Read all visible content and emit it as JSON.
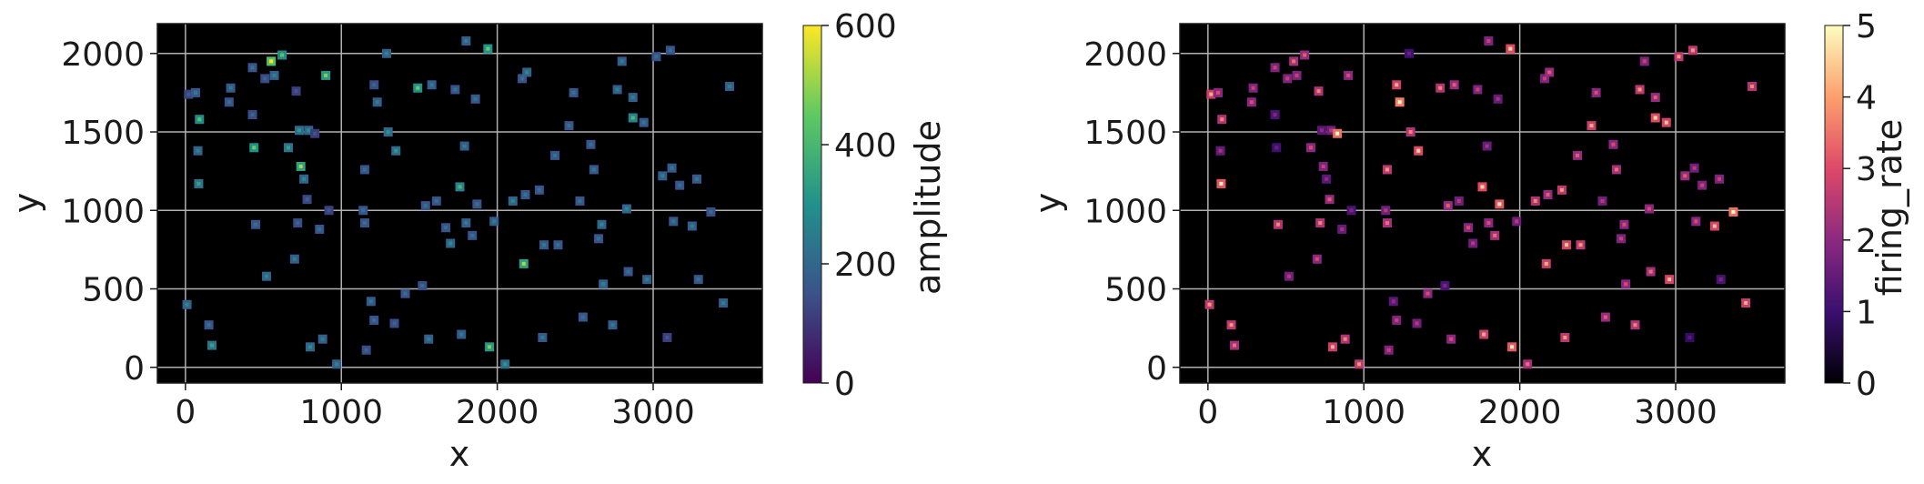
{
  "chart_data": [
    {
      "type": "heatmap",
      "title": "",
      "xlabel": "x",
      "ylabel": "y",
      "xlim": [
        -180,
        3700
      ],
      "ylim": [
        -100,
        2190
      ],
      "xticks": [
        "0",
        "1000",
        "2000",
        "3000"
      ],
      "yticks": [
        "0",
        "500",
        "1000",
        "1500",
        "2000"
      ],
      "grid": true,
      "background": "#000000",
      "colorbar": {
        "label": "amplitude",
        "colormap": "viridis",
        "range": [
          0,
          600
        ],
        "ticks": [
          "0",
          "200",
          "400",
          "600"
        ]
      },
      "points": [
        [
          20,
          1740,
          160
        ],
        [
          65,
          1750,
          220
        ],
        [
          90,
          1580,
          380
        ],
        [
          80,
          1380,
          240
        ],
        [
          85,
          1170,
          300
        ],
        [
          10,
          400,
          250
        ],
        [
          150,
          270,
          200
        ],
        [
          170,
          140,
          300
        ],
        [
          290,
          1780,
          220
        ],
        [
          280,
          1690,
          200
        ],
        [
          430,
          1910,
          200
        ],
        [
          430,
          1610,
          180
        ],
        [
          440,
          1400,
          400
        ],
        [
          450,
          910,
          200
        ],
        [
          510,
          1840,
          180
        ],
        [
          520,
          580,
          250
        ],
        [
          550,
          1950,
          560
        ],
        [
          570,
          1860,
          240
        ],
        [
          620,
          1990,
          380
        ],
        [
          660,
          1400,
          300
        ],
        [
          700,
          690,
          230
        ],
        [
          710,
          1760,
          150
        ],
        [
          720,
          920,
          180
        ],
        [
          730,
          1510,
          280
        ],
        [
          740,
          1280,
          450
        ],
        [
          760,
          1200,
          250
        ],
        [
          780,
          1070,
          170
        ],
        [
          790,
          1510,
          260
        ],
        [
          800,
          130,
          260
        ],
        [
          830,
          1490,
          140
        ],
        [
          860,
          880,
          200
        ],
        [
          880,
          180,
          230
        ],
        [
          900,
          1860,
          420
        ],
        [
          920,
          1000,
          150
        ],
        [
          970,
          20,
          240
        ],
        [
          1150,
          1260,
          200
        ],
        [
          1140,
          1000,
          200
        ],
        [
          1150,
          920,
          200
        ],
        [
          1160,
          110,
          180
        ],
        [
          1190,
          420,
          220
        ],
        [
          1210,
          1800,
          180
        ],
        [
          1210,
          300,
          200
        ],
        [
          1230,
          1690,
          230
        ],
        [
          1290,
          2000,
          240
        ],
        [
          1300,
          1500,
          270
        ],
        [
          1340,
          280,
          180
        ],
        [
          1350,
          1380,
          280
        ],
        [
          1410,
          470,
          200
        ],
        [
          1490,
          1780,
          400
        ],
        [
          1520,
          520,
          190
        ],
        [
          1540,
          1030,
          200
        ],
        [
          1560,
          180,
          230
        ],
        [
          1580,
          1800,
          230
        ],
        [
          1610,
          1060,
          200
        ],
        [
          1670,
          890,
          200
        ],
        [
          1700,
          790,
          260
        ],
        [
          1730,
          1770,
          200
        ],
        [
          1760,
          1150,
          350
        ],
        [
          1770,
          210,
          220
        ],
        [
          1790,
          1410,
          230
        ],
        [
          1800,
          2080,
          230
        ],
        [
          1800,
          920,
          230
        ],
        [
          1840,
          840,
          200
        ],
        [
          1860,
          1710,
          210
        ],
        [
          1870,
          1040,
          200
        ],
        [
          1940,
          2030,
          400
        ],
        [
          1950,
          130,
          420
        ],
        [
          1980,
          930,
          230
        ],
        [
          2050,
          20,
          280
        ],
        [
          2100,
          1060,
          250
        ],
        [
          2160,
          1840,
          200
        ],
        [
          2170,
          660,
          450
        ],
        [
          2180,
          1100,
          210
        ],
        [
          2190,
          1880,
          250
        ],
        [
          2270,
          1130,
          200
        ],
        [
          2290,
          190,
          220
        ],
        [
          2300,
          780,
          220
        ],
        [
          2370,
          1350,
          210
        ],
        [
          2390,
          780,
          200
        ],
        [
          2460,
          1540,
          200
        ],
        [
          2490,
          1750,
          210
        ],
        [
          2530,
          1060,
          210
        ],
        [
          2550,
          320,
          200
        ],
        [
          2600,
          1420,
          200
        ],
        [
          2620,
          1260,
          220
        ],
        [
          2650,
          820,
          200
        ],
        [
          2670,
          910,
          250
        ],
        [
          2680,
          530,
          240
        ],
        [
          2740,
          270,
          230
        ],
        [
          2770,
          1770,
          230
        ],
        [
          2800,
          1950,
          230
        ],
        [
          2830,
          1010,
          250
        ],
        [
          2840,
          610,
          200
        ],
        [
          2870,
          1590,
          350
        ],
        [
          2870,
          1720,
          230
        ],
        [
          2940,
          1560,
          220
        ],
        [
          2960,
          560,
          230
        ],
        [
          3020,
          1980,
          200
        ],
        [
          3060,
          1220,
          230
        ],
        [
          3090,
          190,
          150
        ],
        [
          3120,
          1270,
          220
        ],
        [
          3130,
          930,
          210
        ],
        [
          3170,
          1160,
          200
        ],
        [
          3250,
          900,
          230
        ],
        [
          3280,
          1200,
          220
        ],
        [
          3290,
          560,
          210
        ],
        [
          3370,
          990,
          190
        ],
        [
          3450,
          410,
          230
        ],
        [
          3490,
          1790,
          230
        ],
        [
          3110,
          2020,
          200
        ]
      ]
    },
    {
      "type": "heatmap",
      "title": "",
      "xlabel": "x",
      "ylabel": "y",
      "xlim": [
        -180,
        3700
      ],
      "ylim": [
        -100,
        2190
      ],
      "xticks": [
        "0",
        "1000",
        "2000",
        "3000"
      ],
      "yticks": [
        "0",
        "500",
        "1000",
        "1500",
        "2000"
      ],
      "grid": true,
      "background": "#000000",
      "colorbar": {
        "label": "firing_rate",
        "colormap": "magma",
        "range": [
          0,
          5
        ],
        "ticks": [
          "0",
          "1",
          "2",
          "3",
          "4",
          "5"
        ]
      },
      "points": [
        [
          20,
          1740,
          3.6
        ],
        [
          65,
          1750,
          2.6
        ],
        [
          90,
          1580,
          3.2
        ],
        [
          80,
          1380,
          2.0
        ],
        [
          85,
          1170,
          4.2
        ],
        [
          10,
          400,
          3.4
        ],
        [
          150,
          270,
          3.4
        ],
        [
          170,
          140,
          3.0
        ],
        [
          290,
          1780,
          2.4
        ],
        [
          280,
          1690,
          2.6
        ],
        [
          430,
          1910,
          2.4
        ],
        [
          430,
          1610,
          1.6
        ],
        [
          440,
          1400,
          1.4
        ],
        [
          450,
          910,
          3.2
        ],
        [
          510,
          1840,
          2.4
        ],
        [
          520,
          580,
          2.2
        ],
        [
          550,
          1950,
          3.0
        ],
        [
          570,
          1860,
          2.4
        ],
        [
          620,
          1990,
          2.8
        ],
        [
          660,
          1400,
          2.6
        ],
        [
          700,
          690,
          2.6
        ],
        [
          710,
          1760,
          3.2
        ],
        [
          720,
          920,
          3.2
        ],
        [
          730,
          1510,
          1.8
        ],
        [
          740,
          1280,
          2.4
        ],
        [
          760,
          1200,
          1.8
        ],
        [
          780,
          1070,
          2.8
        ],
        [
          790,
          1510,
          2.2
        ],
        [
          800,
          130,
          3.6
        ],
        [
          830,
          1490,
          4.6
        ],
        [
          860,
          880,
          2.0
        ],
        [
          880,
          180,
          3.2
        ],
        [
          900,
          1860,
          2.6
        ],
        [
          920,
          1000,
          1.6
        ],
        [
          970,
          20,
          3.4
        ],
        [
          1150,
          1260,
          3.4
        ],
        [
          1140,
          1000,
          2.2
        ],
        [
          1150,
          920,
          3.0
        ],
        [
          1160,
          110,
          2.4
        ],
        [
          1190,
          420,
          1.8
        ],
        [
          1210,
          1800,
          3.6
        ],
        [
          1210,
          300,
          2.4
        ],
        [
          1230,
          1690,
          4.8
        ],
        [
          1290,
          2000,
          1.4
        ],
        [
          1300,
          1500,
          3.2
        ],
        [
          1340,
          280,
          2.2
        ],
        [
          1350,
          1380,
          4.0
        ],
        [
          1410,
          470,
          2.6
        ],
        [
          1490,
          1780,
          3.2
        ],
        [
          1520,
          520,
          1.6
        ],
        [
          1540,
          1030,
          2.8
        ],
        [
          1560,
          180,
          2.6
        ],
        [
          1580,
          1800,
          2.8
        ],
        [
          1610,
          1060,
          2.2
        ],
        [
          1670,
          890,
          2.6
        ],
        [
          1700,
          790,
          2.2
        ],
        [
          1730,
          1770,
          2.4
        ],
        [
          1760,
          1150,
          4.0
        ],
        [
          1770,
          210,
          3.6
        ],
        [
          1790,
          1410,
          2.0
        ],
        [
          1800,
          2080,
          2.4
        ],
        [
          1800,
          920,
          2.6
        ],
        [
          1840,
          840,
          3.0
        ],
        [
          1860,
          1710,
          2.0
        ],
        [
          1870,
          1040,
          4.2
        ],
        [
          1940,
          2030,
          4.0
        ],
        [
          1950,
          130,
          4.2
        ],
        [
          1980,
          930,
          2.2
        ],
        [
          2050,
          20,
          3.0
        ],
        [
          2100,
          1060,
          3.2
        ],
        [
          2160,
          1840,
          2.4
        ],
        [
          2170,
          660,
          3.6
        ],
        [
          2180,
          1100,
          2.8
        ],
        [
          2190,
          1880,
          2.8
        ],
        [
          2270,
          1130,
          3.4
        ],
        [
          2290,
          190,
          3.4
        ],
        [
          2300,
          780,
          3.8
        ],
        [
          2370,
          1350,
          2.8
        ],
        [
          2390,
          780,
          3.4
        ],
        [
          2460,
          1540,
          3.6
        ],
        [
          2490,
          1750,
          2.6
        ],
        [
          2530,
          1060,
          2.2
        ],
        [
          2550,
          320,
          2.8
        ],
        [
          2600,
          1420,
          2.6
        ],
        [
          2620,
          1260,
          3.0
        ],
        [
          2650,
          820,
          2.4
        ],
        [
          2670,
          910,
          2.6
        ],
        [
          2680,
          530,
          2.6
        ],
        [
          2740,
          270,
          3.2
        ],
        [
          2770,
          1770,
          3.4
        ],
        [
          2800,
          1950,
          2.4
        ],
        [
          2830,
          1010,
          2.6
        ],
        [
          2840,
          610,
          3.0
        ],
        [
          2870,
          1590,
          4.0
        ],
        [
          2870,
          1720,
          2.8
        ],
        [
          2940,
          1560,
          3.8
        ],
        [
          2960,
          560,
          3.8
        ],
        [
          3020,
          1980,
          3.4
        ],
        [
          3060,
          1220,
          2.8
        ],
        [
          3090,
          190,
          1.2
        ],
        [
          3120,
          1270,
          2.2
        ],
        [
          3130,
          930,
          2.6
        ],
        [
          3170,
          1160,
          2.4
        ],
        [
          3250,
          900,
          3.8
        ],
        [
          3280,
          1200,
          2.4
        ],
        [
          3290,
          560,
          1.6
        ],
        [
          3370,
          990,
          4.6
        ],
        [
          3450,
          410,
          3.6
        ],
        [
          3490,
          1790,
          3.2
        ],
        [
          3110,
          2020,
          3.4
        ]
      ]
    }
  ]
}
